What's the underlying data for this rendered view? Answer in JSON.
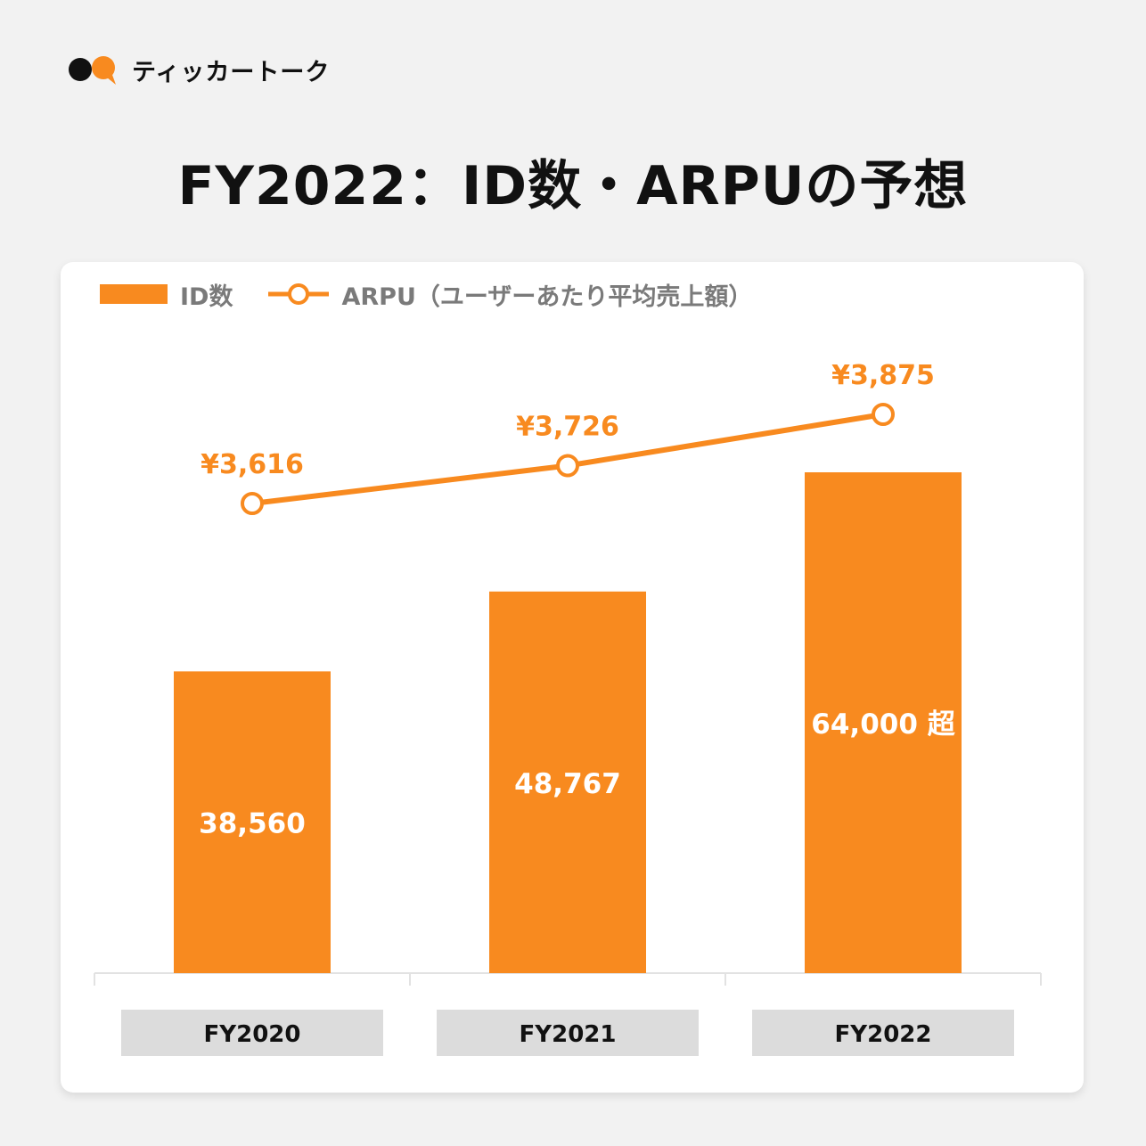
{
  "brand": {
    "name": "ティッカートーク",
    "logo": "speech-bubble-logo-icon",
    "colors": {
      "dark": "#111111",
      "accent": "#f88a1f"
    }
  },
  "title": "FY2022：ID数・ARPUの予想",
  "legend": {
    "bar_label": "ID数",
    "line_label": "ARPU（ユーザーあたり平均売上額）"
  },
  "colors": {
    "bar": "#f88a1f",
    "line": "#f88a1f",
    "category_box": "#dcdcdc",
    "background": "#f2f2f2"
  },
  "chart_data": {
    "type": "bar",
    "categories": [
      "FY2020",
      "FY2021",
      "FY2022"
    ],
    "series": [
      {
        "name": "ID数",
        "type": "bar",
        "values": [
          38560,
          48767,
          64000
        ],
        "labels": [
          "38,560",
          "48,767",
          "64,000 超"
        ]
      },
      {
        "name": "ARPU（ユーザーあたり平均売上額）",
        "type": "line",
        "marker": "hollow-circle",
        "values": [
          3616,
          3726,
          3875
        ],
        "labels": [
          "¥3,616",
          "¥3,726",
          "¥3,875"
        ]
      }
    ],
    "title": "FY2022：ID数・ARPUの予想",
    "xlabel": "",
    "ylabel": "",
    "grid": false,
    "legend_position": "top-left"
  }
}
